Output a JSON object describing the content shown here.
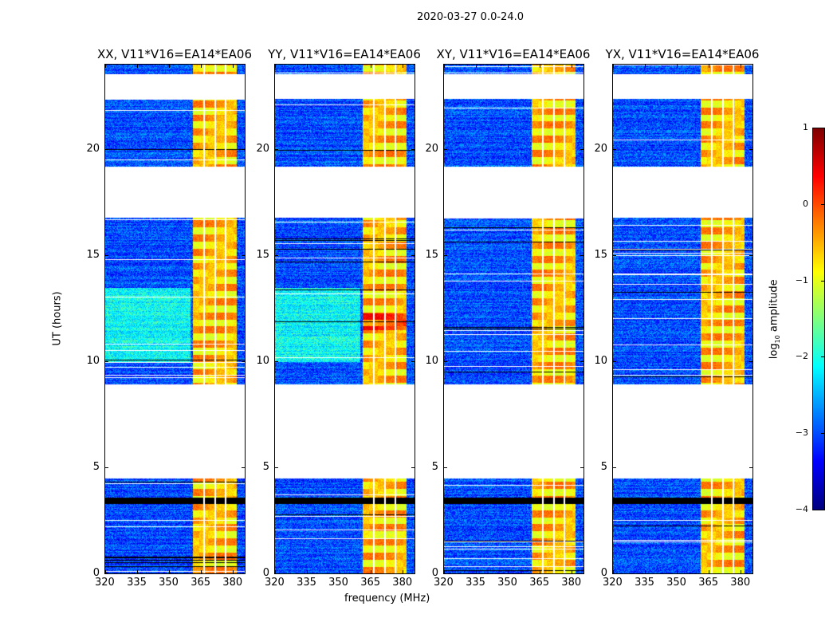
{
  "chart_data": {
    "type": "heatmap",
    "title": "2020-03-27 0.0-24.0",
    "panels": [
      {
        "title": "XX, V11*V16=EA14*EA06",
        "green_region": true
      },
      {
        "title": "YY, V11*V16=EA14*EA06",
        "green_region": true
      },
      {
        "title": "XY, V11*V16=EA14*EA06",
        "green_region": false
      },
      {
        "title": "YX, V11*V16=EA14*EA06",
        "green_region": false
      }
    ],
    "xlabel": "frequency (MHz)",
    "ylabel": "UT (hours)",
    "xlim": [
      320,
      385.5
    ],
    "ylim": [
      0,
      24
    ],
    "xticks": [
      "320",
      "335",
      "350",
      "365",
      "380"
    ],
    "xtick_values": [
      320,
      335,
      350,
      365,
      380
    ],
    "yticks": [
      "0",
      "5",
      "10",
      "15",
      "20"
    ],
    "ytick_values": [
      0,
      5,
      10,
      15,
      20
    ],
    "data_gaps_hours": [
      [
        4.5,
        8.95
      ],
      [
        16.8,
        19.2
      ],
      [
        22.4,
        23.55
      ]
    ],
    "flagged_dark_hours": [
      [
        3.3,
        3.6
      ]
    ],
    "strong_band_mhz": [
      361.1,
      381.5
    ],
    "band_gap_lines_mhz": [
      366.3,
      371.5,
      376.3
    ],
    "background_log_amp": -3.0,
    "band_log_amp": -0.6,
    "colorbar": {
      "label_prefix": "log",
      "label_sub": "10",
      "label_suffix": " amplitude",
      "ticks": [
        "1",
        "0",
        "−1",
        "−2",
        "−3",
        "−4"
      ],
      "tick_values": [
        1,
        0,
        -1,
        -2,
        -3,
        -4
      ],
      "range": [
        -4,
        1
      ],
      "colormap": "jet"
    }
  }
}
